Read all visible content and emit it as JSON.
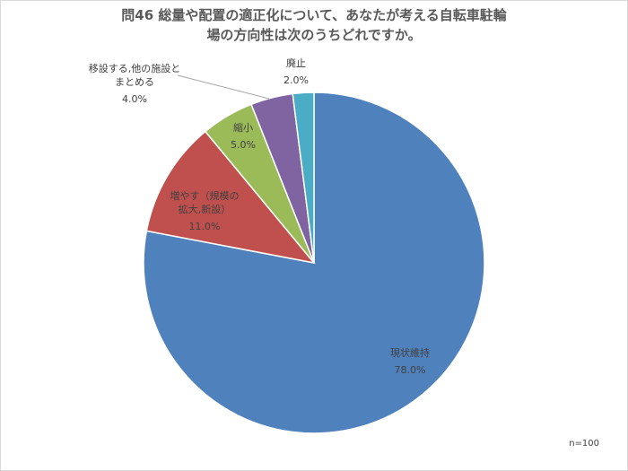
{
  "chart_data": {
    "type": "pie",
    "title": "問46  総量や配置の適正化について、あなたが考える自転車駐輪\n場の方向性は次のうちどれですか。",
    "categories": [
      "現状維持",
      "増やす（規模の\n拡大,新設）",
      "縮小",
      "移設する,他の施設と\nまとめる",
      "廃止"
    ],
    "values": [
      78.0,
      11.0,
      5.0,
      4.0,
      2.0
    ],
    "value_labels": [
      "78.0%",
      "11.0%",
      "5.0%",
      "4.0%",
      "2.0%"
    ],
    "colors": [
      "#4f81bd",
      "#c0504d",
      "#9bbb59",
      "#8064a2",
      "#4bacc6"
    ],
    "annotation": "n=100"
  }
}
